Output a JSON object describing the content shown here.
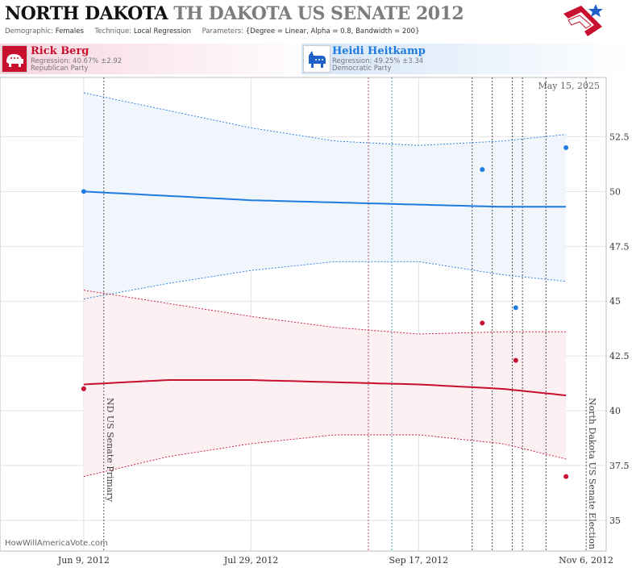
{
  "header": {
    "title_state": "NORTH DAKOTA",
    "title_race": "TH DAKOTA US SENATE 2012",
    "demographic_label": "Demographic:",
    "demographic_value": "Females",
    "technique_label": "Technique:",
    "technique_value": "Local Regression",
    "parameters_label": "Parameters:",
    "parameters_value": "{Degree = Linear, Alpha = 0.8, Bandwidth = 200}"
  },
  "candidates": {
    "rep": {
      "name": "Rick Berg",
      "regression": "Regression: 40.67% ±2.92",
      "party": "Republican Party",
      "color": "#c8102e"
    },
    "dem": {
      "name": "Heidi Heitkamp",
      "regression": "Regression: 49.25% ±3.34",
      "party": "Democratic Party",
      "color": "#1e7be0"
    }
  },
  "watermark": "HowWillAmericaVote.com",
  "chart_data": {
    "type": "line",
    "date_label": "May 15, 2025",
    "x_ticks": [
      {
        "label": "Jun 9, 2012",
        "day": 0
      },
      {
        "label": "Jul 29, 2012",
        "day": 50
      },
      {
        "label": "Sep 17, 2012",
        "day": 100
      },
      {
        "label": "Nov 6, 2012",
        "day": 150
      }
    ],
    "y_ticks": [
      35,
      37.5,
      40,
      42.5,
      45,
      47.5,
      50,
      52.5
    ],
    "ylim": [
      33.6,
      55.2
    ],
    "xlim": [
      -25,
      156
    ],
    "events": [
      {
        "label": "ND US Senate Primary",
        "day": 6
      },
      {
        "label": "North Dakota US Senate Election",
        "day": 150
      }
    ],
    "series": [
      {
        "name": "Heidi Heitkamp",
        "color": "#1e7be0",
        "x": [
          0,
          25,
          50,
          75,
          100,
          125,
          144
        ],
        "y": [
          50.0,
          49.8,
          49.6,
          49.5,
          49.4,
          49.3,
          49.3
        ],
        "upper": [
          54.5,
          53.7,
          52.9,
          52.3,
          52.1,
          52.3,
          52.6
        ],
        "lower": [
          45.1,
          45.8,
          46.4,
          46.8,
          46.8,
          46.2,
          45.9
        ],
        "points": [
          {
            "x": 0,
            "y": 50.0
          },
          {
            "x": 119,
            "y": 51.0
          },
          {
            "x": 129,
            "y": 44.7
          },
          {
            "x": 144,
            "y": 52.0
          }
        ]
      },
      {
        "name": "Rick Berg",
        "color": "#c8102e",
        "x": [
          0,
          25,
          50,
          75,
          100,
          125,
          144
        ],
        "y": [
          41.2,
          41.4,
          41.4,
          41.3,
          41.2,
          41.0,
          40.7
        ],
        "upper": [
          45.5,
          44.9,
          44.3,
          43.8,
          43.5,
          43.6,
          43.6
        ],
        "lower": [
          37.0,
          37.9,
          38.5,
          38.9,
          38.9,
          38.5,
          37.8
        ],
        "points": [
          {
            "x": 0,
            "y": 41.0
          },
          {
            "x": 119,
            "y": 44.0
          },
          {
            "x": 129,
            "y": 42.3
          },
          {
            "x": 144,
            "y": 37.0
          }
        ]
      }
    ],
    "poll_lines": [
      {
        "day": 85,
        "color": "#9b1d45"
      },
      {
        "day": 92,
        "color": "#1a8a9a"
      },
      {
        "day": 116,
        "color": "#222222"
      },
      {
        "day": 122,
        "color": "#222222"
      },
      {
        "day": 128,
        "color": "#222222"
      },
      {
        "day": 131,
        "color": "#222222"
      },
      {
        "day": 138,
        "color": "#222222"
      }
    ]
  }
}
